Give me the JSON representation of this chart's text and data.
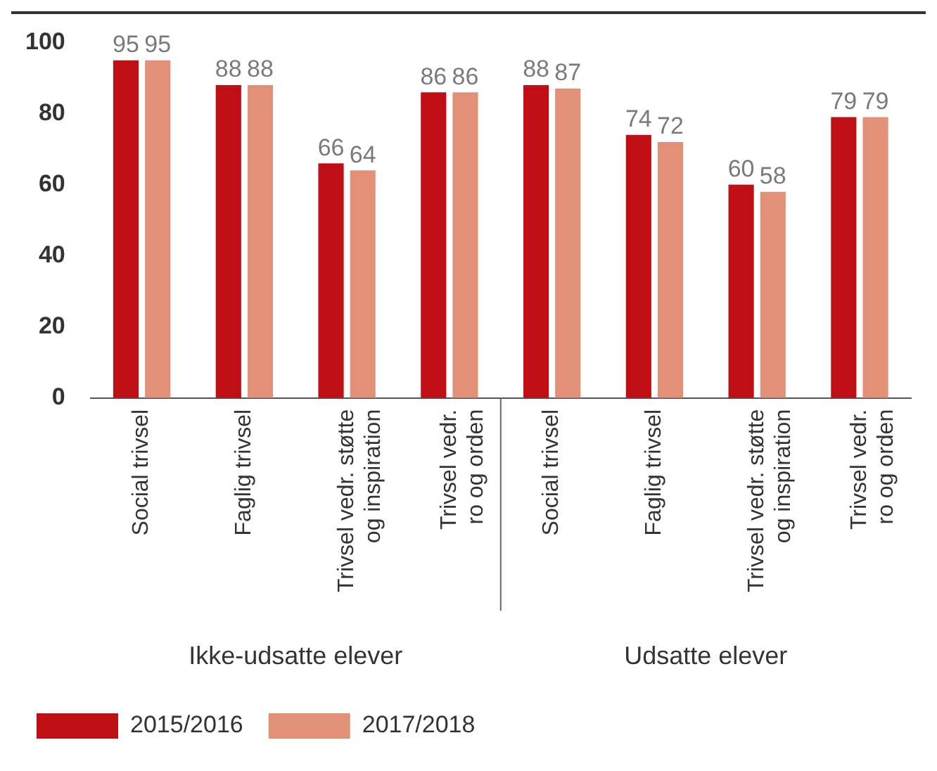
{
  "chart_data": {
    "type": "bar",
    "categories": [
      "Social trivsel",
      "Faglig trivsel",
      "Trivsel vedr. støtte\nog inspiration",
      "Trivsel vedr.\nro og orden",
      "Social trivsel",
      "Faglig trivsel",
      "Trivsel vedr. støtte\nog inspiration",
      "Trivsel vedr.\nro og orden"
    ],
    "series": [
      {
        "name": "2015/2016",
        "color": "#c00f14",
        "values": [
          95,
          88,
          66,
          86,
          88,
          74,
          60,
          79
        ]
      },
      {
        "name": "2017/2018",
        "color": "#e39079",
        "values": [
          95,
          88,
          64,
          86,
          87,
          72,
          58,
          79
        ]
      }
    ],
    "ylim": [
      0,
      100
    ],
    "yticks": [
      0,
      20,
      40,
      60,
      80,
      100
    ],
    "grid": false,
    "legend": "bottom",
    "data_labels": true,
    "annotations": [
      "Ikke-udsatte elever",
      "Udsatte elever"
    ]
  }
}
